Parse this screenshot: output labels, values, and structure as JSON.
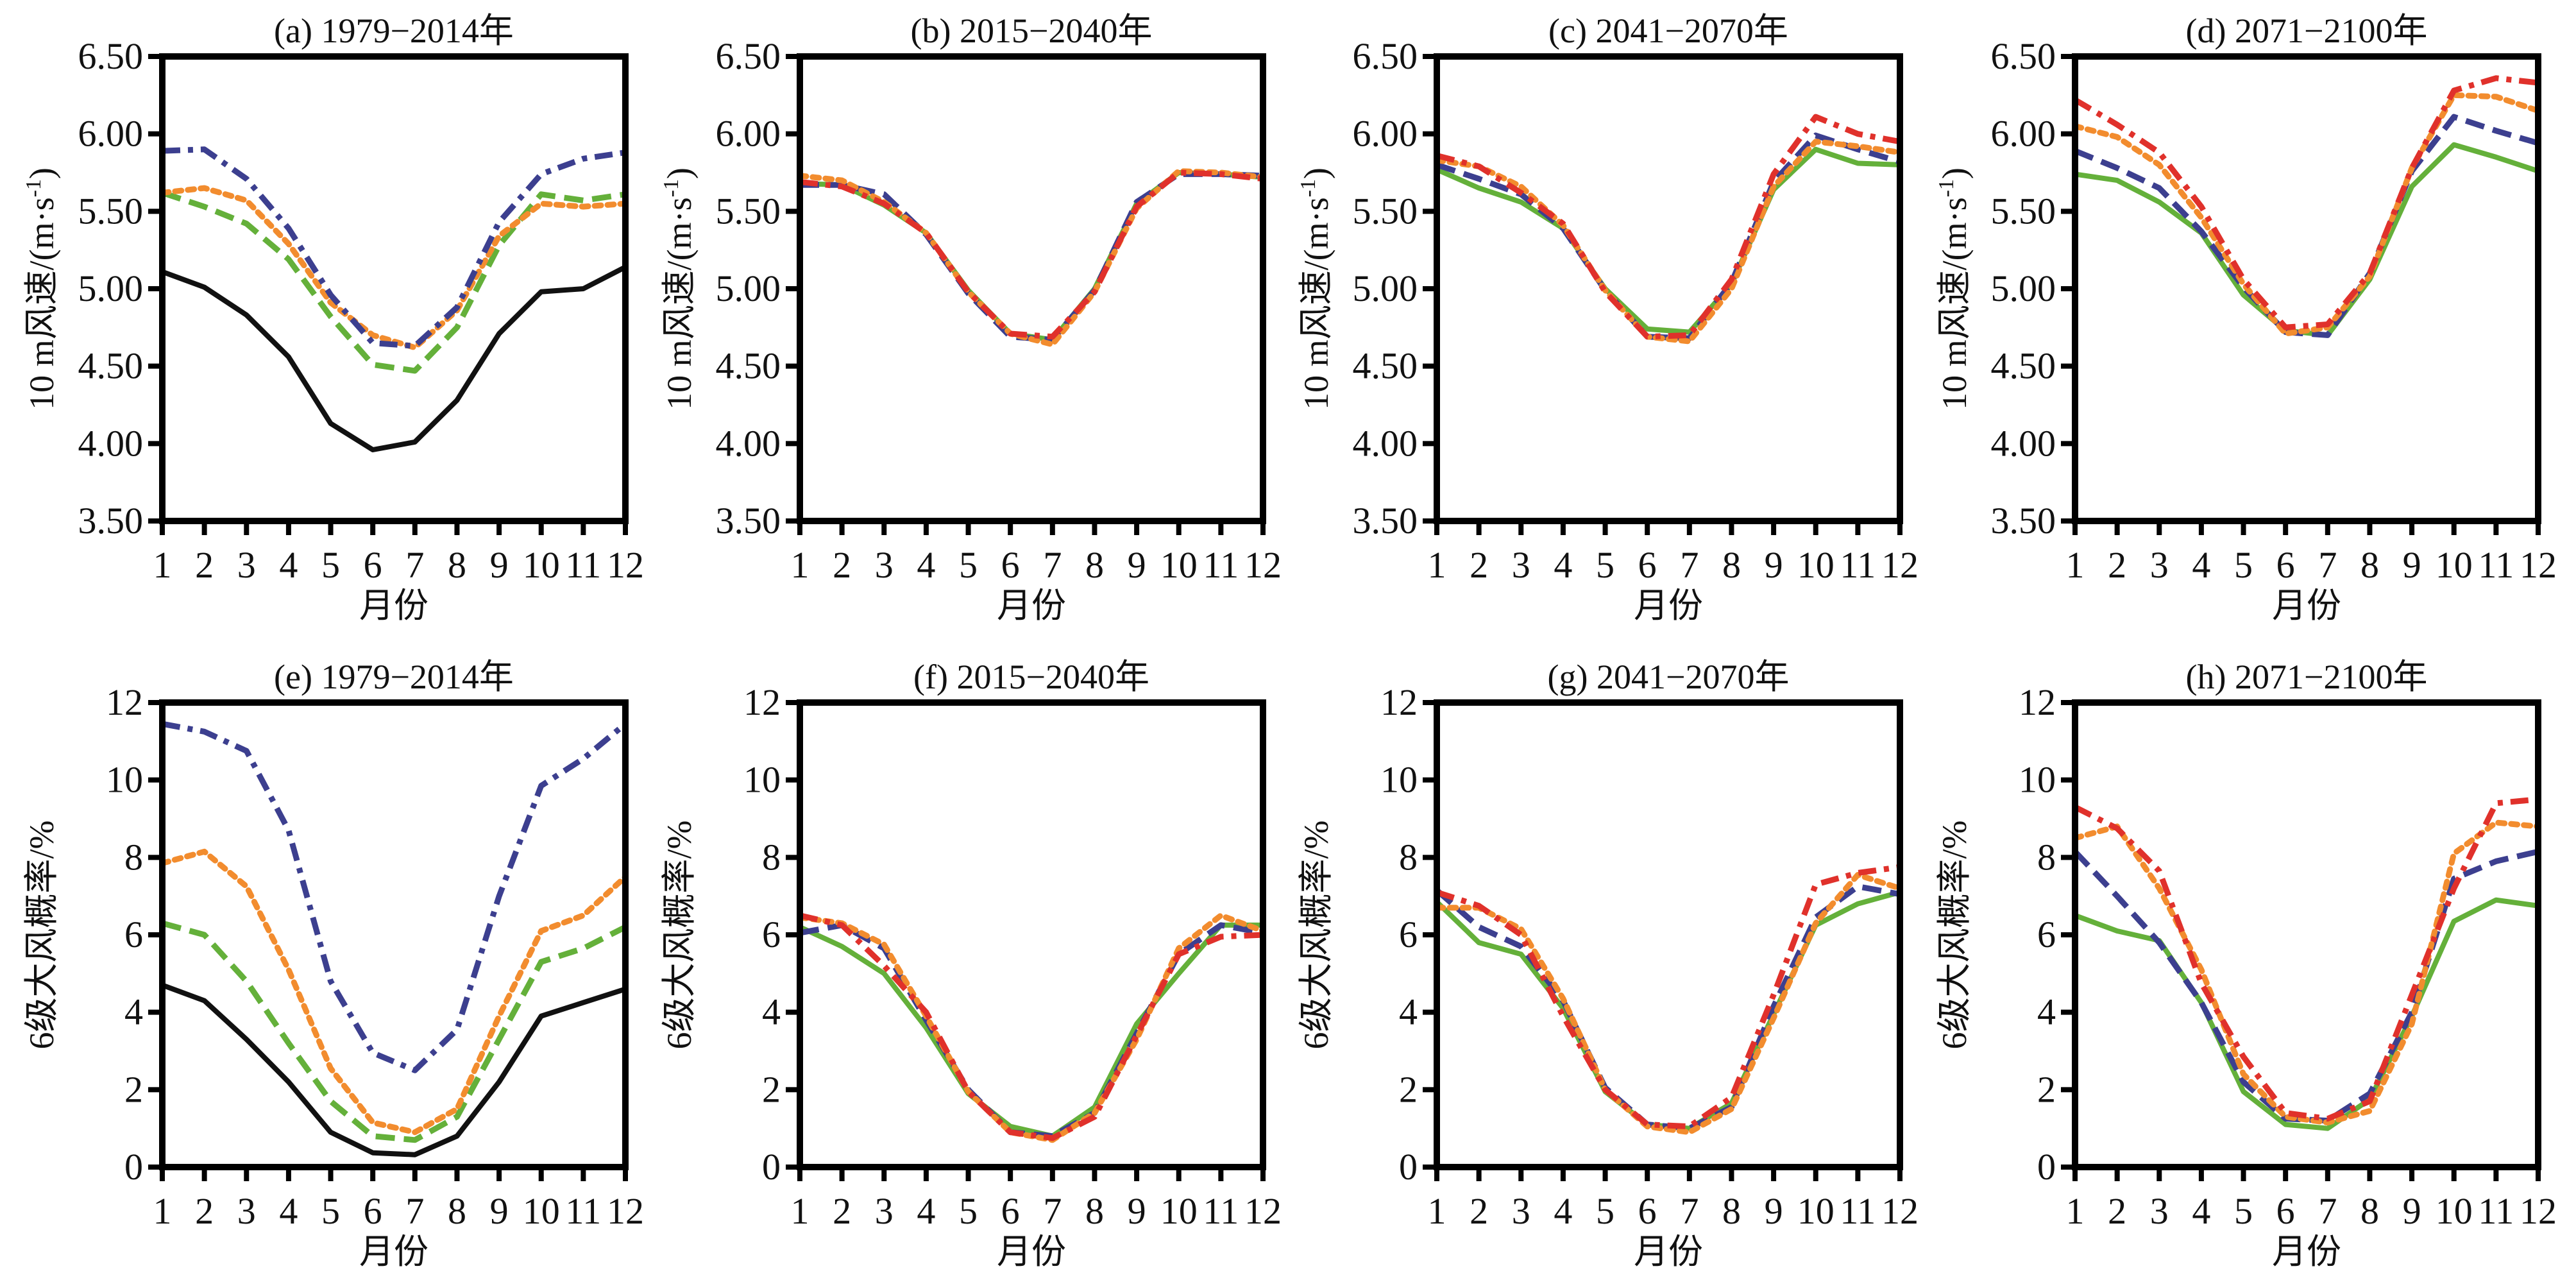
{
  "colors": {
    "obs": "#111111",
    "blue": "#3c3f8f",
    "orange": "#f28c2e",
    "green": "#64b03a",
    "red": "#e0312b"
  },
  "chart_data": [
    {
      "type": "line",
      "panel": "a",
      "title": "(a) 1979−2014年",
      "xlabel": "月份",
      "ylabel": "10 m风速/(m·s-1)",
      "ylabel_main": "10 m风速/(m·s",
      "ylabel_sup": "-1",
      "ylabel_end": ")",
      "ylim": [
        3.5,
        6.5
      ],
      "yticks": [
        "3.50",
        "4.00",
        "4.50",
        "5.00",
        "5.50",
        "6.00",
        "6.50"
      ],
      "x": [
        1,
        2,
        3,
        4,
        5,
        6,
        7,
        8,
        9,
        10,
        11,
        12
      ],
      "series": [
        {
          "style": "solid",
          "color": "obs",
          "values": [
            5.11,
            5.01,
            4.83,
            4.56,
            4.13,
            3.96,
            4.01,
            4.28,
            4.71,
            4.98,
            5.0,
            5.14
          ]
        },
        {
          "style": "dashed",
          "color": "green",
          "values": [
            5.62,
            5.53,
            5.42,
            5.19,
            4.82,
            4.51,
            4.47,
            4.75,
            5.28,
            5.61,
            5.57,
            5.61
          ]
        },
        {
          "style": "dotted",
          "color": "orange",
          "values": [
            5.62,
            5.65,
            5.57,
            5.29,
            4.91,
            4.7,
            4.62,
            4.86,
            5.34,
            5.55,
            5.53,
            5.55
          ]
        },
        {
          "style": "dashdot",
          "color": "blue",
          "values": [
            5.89,
            5.9,
            5.71,
            5.39,
            4.96,
            4.65,
            4.63,
            4.88,
            5.43,
            5.74,
            5.84,
            5.88
          ]
        }
      ]
    },
    {
      "type": "line",
      "panel": "b",
      "title": "(b) 2015−2040年",
      "xlabel": "月份",
      "ylabel": "10 m风速/(m·s-1)",
      "ylabel_main": "10 m风速/(m·s",
      "ylabel_sup": "-1",
      "ylabel_end": ")",
      "ylim": [
        3.5,
        6.5
      ],
      "yticks": [
        "3.50",
        "4.00",
        "4.50",
        "5.00",
        "5.50",
        "6.00",
        "6.50"
      ],
      "x": [
        1,
        2,
        3,
        4,
        5,
        6,
        7,
        8,
        9,
        10,
        11,
        12
      ],
      "series": [
        {
          "style": "solid",
          "color": "green",
          "values": [
            5.68,
            5.67,
            5.54,
            5.36,
            4.99,
            4.71,
            4.67,
            5.0,
            5.55,
            5.75,
            5.74,
            5.72
          ]
        },
        {
          "style": "dashed",
          "color": "blue",
          "values": [
            5.67,
            5.67,
            5.61,
            5.35,
            4.97,
            4.69,
            4.67,
            4.99,
            5.56,
            5.74,
            5.74,
            5.73
          ]
        },
        {
          "style": "dotted",
          "color": "orange",
          "values": [
            5.73,
            5.7,
            5.56,
            5.36,
            4.98,
            4.71,
            4.64,
            4.98,
            5.52,
            5.76,
            5.75,
            5.72
          ]
        },
        {
          "style": "dashdot",
          "color": "red",
          "values": [
            5.69,
            5.66,
            5.55,
            5.36,
            4.98,
            4.71,
            4.69,
            4.98,
            5.53,
            5.75,
            5.74,
            5.71
          ]
        }
      ]
    },
    {
      "type": "line",
      "panel": "c",
      "title": "(c) 2041−2070年",
      "xlabel": "月份",
      "ylabel": "10 m风速/(m·s-1)",
      "ylabel_main": "10 m风速/(m·s",
      "ylabel_sup": "-1",
      "ylabel_end": ")",
      "ylim": [
        3.5,
        6.5
      ],
      "yticks": [
        "3.50",
        "4.00",
        "4.50",
        "5.00",
        "5.50",
        "6.00",
        "6.50"
      ],
      "x": [
        1,
        2,
        3,
        4,
        5,
        6,
        7,
        8,
        9,
        10,
        11,
        12
      ],
      "series": [
        {
          "style": "solid",
          "color": "green",
          "values": [
            5.77,
            5.65,
            5.56,
            5.39,
            5.0,
            4.74,
            4.72,
            5.03,
            5.64,
            5.9,
            5.81,
            5.8
          ]
        },
        {
          "style": "dashed",
          "color": "blue",
          "values": [
            5.8,
            5.71,
            5.61,
            5.39,
            4.99,
            4.69,
            4.68,
            5.04,
            5.69,
            5.99,
            5.9,
            5.82
          ]
        },
        {
          "style": "dotted",
          "color": "orange",
          "values": [
            5.83,
            5.79,
            5.66,
            5.41,
            4.99,
            4.69,
            4.66,
            5.0,
            5.66,
            5.95,
            5.92,
            5.88
          ]
        },
        {
          "style": "dashdot",
          "color": "red",
          "values": [
            5.86,
            5.79,
            5.62,
            5.42,
            4.98,
            4.69,
            4.7,
            5.06,
            5.74,
            6.11,
            6.0,
            5.95
          ]
        }
      ]
    },
    {
      "type": "line",
      "panel": "d",
      "title": "(d) 2071−2100年",
      "xlabel": "月份",
      "ylabel": "10 m风速/(m·s-1)",
      "ylabel_main": "10 m风速/(m·s",
      "ylabel_sup": "-1",
      "ylabel_end": ")",
      "ylim": [
        3.5,
        6.5
      ],
      "yticks": [
        "3.50",
        "4.00",
        "4.50",
        "5.00",
        "5.50",
        "6.00",
        "6.50"
      ],
      "x": [
        1,
        2,
        3,
        4,
        5,
        6,
        7,
        8,
        9,
        10,
        11,
        12
      ],
      "series": [
        {
          "style": "solid",
          "color": "green",
          "values": [
            5.74,
            5.7,
            5.56,
            5.36,
            4.96,
            4.73,
            4.7,
            5.06,
            5.66,
            5.93,
            5.85,
            5.76
          ]
        },
        {
          "style": "dashed",
          "color": "blue",
          "values": [
            5.89,
            5.78,
            5.65,
            5.37,
            5.01,
            4.72,
            4.7,
            5.1,
            5.76,
            6.11,
            6.02,
            5.94
          ]
        },
        {
          "style": "dotted",
          "color": "orange",
          "values": [
            6.05,
            5.98,
            5.8,
            5.46,
            5.03,
            4.71,
            4.75,
            5.08,
            5.78,
            6.25,
            6.24,
            6.15
          ]
        },
        {
          "style": "dashdot",
          "color": "red",
          "values": [
            6.22,
            6.06,
            5.88,
            5.53,
            5.06,
            4.75,
            4.77,
            5.1,
            5.78,
            6.28,
            6.36,
            6.33
          ]
        }
      ]
    },
    {
      "type": "line",
      "panel": "e",
      "title": "(e) 1979−2014年",
      "xlabel": "月份",
      "ylabel": "6级大风概率/%",
      "ylabel_main": "6级大风概率/%",
      "ylabel_sup": "",
      "ylabel_end": "",
      "ylim": [
        0,
        12
      ],
      "yticks": [
        "0",
        "2",
        "4",
        "6",
        "8",
        "10",
        "12"
      ],
      "x": [
        1,
        2,
        3,
        4,
        5,
        6,
        7,
        8,
        9,
        10,
        11,
        12
      ],
      "series": [
        {
          "style": "solid",
          "color": "obs",
          "values": [
            4.7,
            4.3,
            3.3,
            2.2,
            0.9,
            0.37,
            0.32,
            0.8,
            2.2,
            3.9,
            4.25,
            4.6
          ]
        },
        {
          "style": "dashed",
          "color": "green",
          "values": [
            6.3,
            6.0,
            4.8,
            3.2,
            1.7,
            0.8,
            0.7,
            1.3,
            3.3,
            5.3,
            5.65,
            6.2
          ]
        },
        {
          "style": "dotted",
          "color": "orange",
          "values": [
            7.85,
            8.15,
            7.25,
            5.1,
            2.55,
            1.15,
            0.9,
            1.5,
            3.9,
            6.1,
            6.5,
            7.5
          ]
        },
        {
          "style": "dashdot",
          "color": "blue",
          "values": [
            11.45,
            11.25,
            10.75,
            8.7,
            4.8,
            2.95,
            2.5,
            3.55,
            7.0,
            9.85,
            10.55,
            11.45
          ]
        }
      ]
    },
    {
      "type": "line",
      "panel": "f",
      "title": "(f) 2015−2040年",
      "xlabel": "月份",
      "ylabel": "6级大风概率/%",
      "ylabel_main": "6级大风概率/%",
      "ylabel_sup": "",
      "ylabel_end": "",
      "ylim": [
        0,
        12
      ],
      "yticks": [
        "0",
        "2",
        "4",
        "6",
        "8",
        "10",
        "12"
      ],
      "x": [
        1,
        2,
        3,
        4,
        5,
        6,
        7,
        8,
        9,
        10,
        11,
        12
      ],
      "series": [
        {
          "style": "solid",
          "color": "green",
          "values": [
            6.2,
            5.7,
            5.0,
            3.6,
            1.9,
            1.05,
            0.8,
            1.55,
            3.7,
            5.0,
            6.25,
            6.25
          ]
        },
        {
          "style": "dashed",
          "color": "blue",
          "values": [
            6.05,
            6.25,
            5.65,
            3.8,
            2.0,
            0.9,
            0.8,
            1.4,
            3.45,
            5.5,
            6.25,
            6.05
          ]
        },
        {
          "style": "dotted",
          "color": "orange",
          "values": [
            6.45,
            6.3,
            5.75,
            3.9,
            1.95,
            0.9,
            0.7,
            1.4,
            3.3,
            5.65,
            6.5,
            6.1
          ]
        },
        {
          "style": "dashdot",
          "color": "red",
          "values": [
            6.5,
            6.25,
            5.2,
            4.0,
            1.95,
            0.9,
            0.75,
            1.3,
            3.4,
            5.5,
            5.95,
            6.0
          ]
        }
      ]
    },
    {
      "type": "line",
      "panel": "g",
      "title": "(g) 2041−2070年",
      "xlabel": "月份",
      "ylabel": "6级大风概率/%",
      "ylabel_main": "6级大风概率/%",
      "ylabel_sup": "",
      "ylabel_end": "",
      "ylim": [
        0,
        12
      ],
      "yticks": [
        "0",
        "2",
        "4",
        "6",
        "8",
        "10",
        "12"
      ],
      "x": [
        1,
        2,
        3,
        4,
        5,
        6,
        7,
        8,
        9,
        10,
        11,
        12
      ],
      "series": [
        {
          "style": "solid",
          "color": "green",
          "values": [
            6.85,
            5.8,
            5.5,
            4.1,
            1.95,
            1.1,
            1.0,
            1.65,
            3.95,
            6.25,
            6.8,
            7.1
          ]
        },
        {
          "style": "dashed",
          "color": "blue",
          "values": [
            7.15,
            6.2,
            5.7,
            4.3,
            2.05,
            1.1,
            1.0,
            1.55,
            4.15,
            6.45,
            7.25,
            7.05
          ]
        },
        {
          "style": "dotted",
          "color": "orange",
          "values": [
            6.7,
            6.7,
            6.15,
            4.35,
            2.0,
            1.05,
            0.9,
            1.5,
            3.85,
            6.3,
            7.55,
            7.2
          ]
        },
        {
          "style": "dashdot",
          "color": "red",
          "values": [
            7.1,
            6.75,
            6.0,
            3.9,
            2.0,
            1.1,
            1.05,
            1.8,
            4.45,
            7.3,
            7.6,
            7.75
          ]
        }
      ]
    },
    {
      "type": "line",
      "panel": "h",
      "title": "(h) 2071−2100年",
      "xlabel": "月份",
      "ylabel": "6级大风概率/%",
      "ylabel_main": "6级大风概率/%",
      "ylabel_sup": "",
      "ylabel_end": "",
      "ylim": [
        0,
        12
      ],
      "yticks": [
        "0",
        "2",
        "4",
        "6",
        "8",
        "10",
        "12"
      ],
      "x": [
        1,
        2,
        3,
        4,
        5,
        6,
        7,
        8,
        9,
        10,
        11,
        12
      ],
      "series": [
        {
          "style": "solid",
          "color": "green",
          "values": [
            6.5,
            6.1,
            5.85,
            4.25,
            1.95,
            1.1,
            1.0,
            1.75,
            3.9,
            6.35,
            6.9,
            6.75
          ]
        },
        {
          "style": "dashed",
          "color": "blue",
          "values": [
            8.15,
            7.0,
            5.8,
            4.25,
            2.2,
            1.25,
            1.2,
            1.9,
            4.0,
            7.45,
            7.9,
            8.15
          ]
        },
        {
          "style": "dotted",
          "color": "orange",
          "values": [
            8.5,
            8.8,
            7.2,
            5.1,
            2.4,
            1.3,
            1.15,
            1.45,
            3.7,
            8.1,
            8.9,
            8.8
          ]
        },
        {
          "style": "dashdot",
          "color": "red",
          "values": [
            9.3,
            8.75,
            7.65,
            4.75,
            2.85,
            1.4,
            1.25,
            1.7,
            4.45,
            7.2,
            9.4,
            9.5
          ]
        }
      ]
    }
  ]
}
